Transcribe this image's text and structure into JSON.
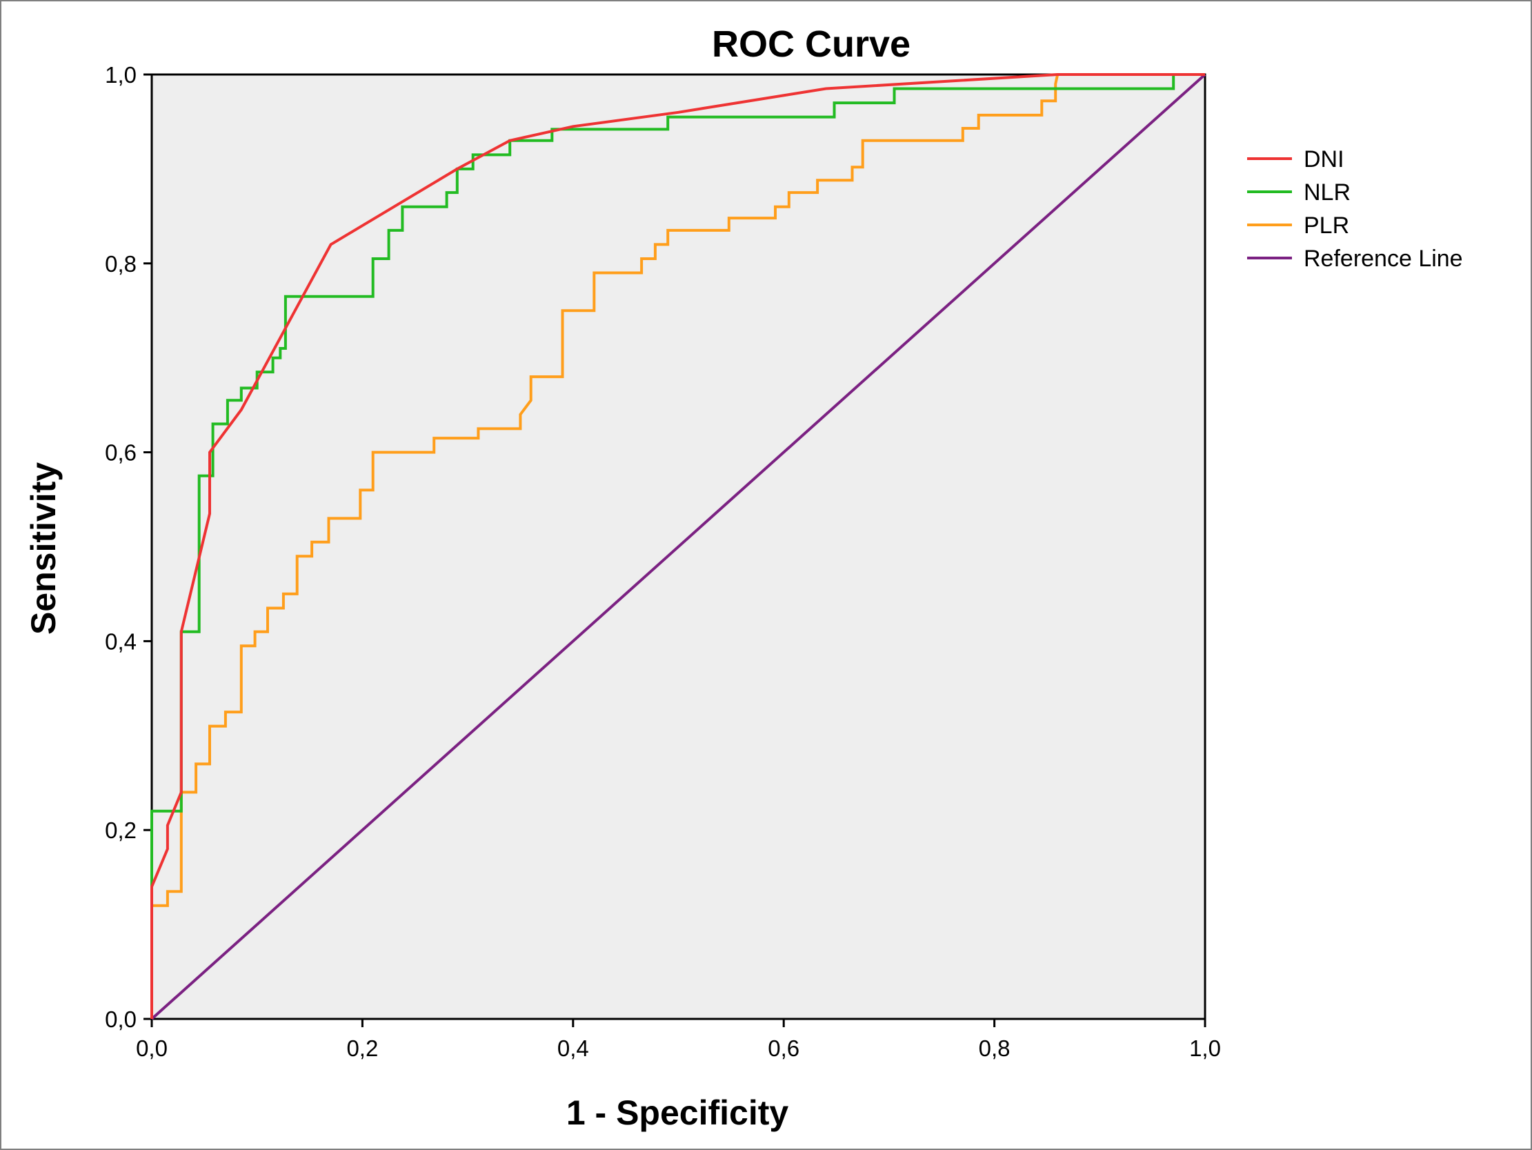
{
  "chart_data": {
    "type": "line",
    "title": "ROC Curve",
    "xlabel": "1 - Specificity",
    "ylabel": "Sensitivity",
    "xlim": [
      0,
      1
    ],
    "ylim": [
      0,
      1
    ],
    "x_ticks": [
      0,
      0.2,
      0.4,
      0.6,
      0.8,
      1.0
    ],
    "y_ticks": [
      0,
      0.2,
      0.4,
      0.6,
      0.8,
      1.0
    ],
    "x_tick_labels": [
      "0,0",
      "0,2",
      "0,4",
      "0,6",
      "0,8",
      "1,0"
    ],
    "y_tick_labels": [
      "0,0",
      "0,2",
      "0,4",
      "0,6",
      "0,8",
      "1,0"
    ],
    "grid": false,
    "plot_background": "#eeeeee",
    "legend_position": "right",
    "series": [
      {
        "name": "DNI",
        "color": "#ee3333",
        "points": [
          [
            0,
            0
          ],
          [
            0,
            0.14
          ],
          [
            0.015,
            0.18
          ],
          [
            0.015,
            0.205
          ],
          [
            0.028,
            0.24
          ],
          [
            0.028,
            0.41
          ],
          [
            0.055,
            0.535
          ],
          [
            0.055,
            0.6
          ],
          [
            0.085,
            0.645
          ],
          [
            0.17,
            0.82
          ],
          [
            0.29,
            0.9
          ],
          [
            0.34,
            0.93
          ],
          [
            0.4,
            0.945
          ],
          [
            0.5,
            0.96
          ],
          [
            0.64,
            0.985
          ],
          [
            0.86,
            1.0
          ],
          [
            1.0,
            1.0
          ]
        ]
      },
      {
        "name": "NLR",
        "color": "#22bb22",
        "points": [
          [
            0,
            0
          ],
          [
            0,
            0.22
          ],
          [
            0.028,
            0.22
          ],
          [
            0.028,
            0.41
          ],
          [
            0.045,
            0.41
          ],
          [
            0.045,
            0.575
          ],
          [
            0.058,
            0.575
          ],
          [
            0.058,
            0.63
          ],
          [
            0.072,
            0.63
          ],
          [
            0.072,
            0.655
          ],
          [
            0.085,
            0.655
          ],
          [
            0.085,
            0.668
          ],
          [
            0.1,
            0.668
          ],
          [
            0.1,
            0.685
          ],
          [
            0.115,
            0.685
          ],
          [
            0.115,
            0.7
          ],
          [
            0.122,
            0.7
          ],
          [
            0.122,
            0.71
          ],
          [
            0.127,
            0.71
          ],
          [
            0.127,
            0.765
          ],
          [
            0.21,
            0.765
          ],
          [
            0.21,
            0.805
          ],
          [
            0.225,
            0.805
          ],
          [
            0.225,
            0.835
          ],
          [
            0.238,
            0.835
          ],
          [
            0.238,
            0.86
          ],
          [
            0.28,
            0.86
          ],
          [
            0.28,
            0.875
          ],
          [
            0.29,
            0.875
          ],
          [
            0.29,
            0.9
          ],
          [
            0.305,
            0.9
          ],
          [
            0.305,
            0.915
          ],
          [
            0.34,
            0.915
          ],
          [
            0.34,
            0.93
          ],
          [
            0.38,
            0.93
          ],
          [
            0.38,
            0.942
          ],
          [
            0.49,
            0.942
          ],
          [
            0.49,
            0.955
          ],
          [
            0.648,
            0.955
          ],
          [
            0.648,
            0.97
          ],
          [
            0.705,
            0.97
          ],
          [
            0.705,
            0.985
          ],
          [
            0.97,
            0.985
          ],
          [
            0.97,
            1.0
          ],
          [
            1.0,
            1.0
          ]
        ]
      },
      {
        "name": "PLR",
        "color": "#ff9e1b",
        "points": [
          [
            0,
            0
          ],
          [
            0,
            0.12
          ],
          [
            0.015,
            0.12
          ],
          [
            0.015,
            0.135
          ],
          [
            0.028,
            0.135
          ],
          [
            0.028,
            0.24
          ],
          [
            0.042,
            0.24
          ],
          [
            0.042,
            0.27
          ],
          [
            0.055,
            0.27
          ],
          [
            0.055,
            0.31
          ],
          [
            0.07,
            0.31
          ],
          [
            0.07,
            0.325
          ],
          [
            0.085,
            0.325
          ],
          [
            0.085,
            0.395
          ],
          [
            0.098,
            0.395
          ],
          [
            0.098,
            0.41
          ],
          [
            0.11,
            0.41
          ],
          [
            0.11,
            0.435
          ],
          [
            0.125,
            0.435
          ],
          [
            0.125,
            0.45
          ],
          [
            0.138,
            0.45
          ],
          [
            0.138,
            0.49
          ],
          [
            0.152,
            0.49
          ],
          [
            0.152,
            0.505
          ],
          [
            0.168,
            0.505
          ],
          [
            0.168,
            0.53
          ],
          [
            0.198,
            0.53
          ],
          [
            0.198,
            0.56
          ],
          [
            0.21,
            0.56
          ],
          [
            0.21,
            0.6
          ],
          [
            0.268,
            0.6
          ],
          [
            0.268,
            0.615
          ],
          [
            0.31,
            0.615
          ],
          [
            0.31,
            0.625
          ],
          [
            0.35,
            0.625
          ],
          [
            0.35,
            0.64
          ],
          [
            0.36,
            0.655
          ],
          [
            0.36,
            0.68
          ],
          [
            0.39,
            0.68
          ],
          [
            0.39,
            0.75
          ],
          [
            0.42,
            0.75
          ],
          [
            0.42,
            0.79
          ],
          [
            0.465,
            0.79
          ],
          [
            0.465,
            0.805
          ],
          [
            0.478,
            0.805
          ],
          [
            0.478,
            0.82
          ],
          [
            0.49,
            0.82
          ],
          [
            0.49,
            0.835
          ],
          [
            0.548,
            0.835
          ],
          [
            0.548,
            0.848
          ],
          [
            0.592,
            0.848
          ],
          [
            0.592,
            0.86
          ],
          [
            0.605,
            0.86
          ],
          [
            0.605,
            0.875
          ],
          [
            0.632,
            0.875
          ],
          [
            0.632,
            0.888
          ],
          [
            0.665,
            0.888
          ],
          [
            0.665,
            0.902
          ],
          [
            0.675,
            0.902
          ],
          [
            0.675,
            0.93
          ],
          [
            0.77,
            0.93
          ],
          [
            0.77,
            0.943
          ],
          [
            0.785,
            0.943
          ],
          [
            0.785,
            0.957
          ],
          [
            0.845,
            0.957
          ],
          [
            0.845,
            0.972
          ],
          [
            0.858,
            0.972
          ],
          [
            0.858,
            0.99
          ],
          [
            0.86,
            1.0
          ],
          [
            1.0,
            1.0
          ]
        ]
      },
      {
        "name": "Reference Line",
        "color": "#7b2182",
        "points": [
          [
            0,
            0
          ],
          [
            1,
            1
          ]
        ]
      }
    ]
  }
}
